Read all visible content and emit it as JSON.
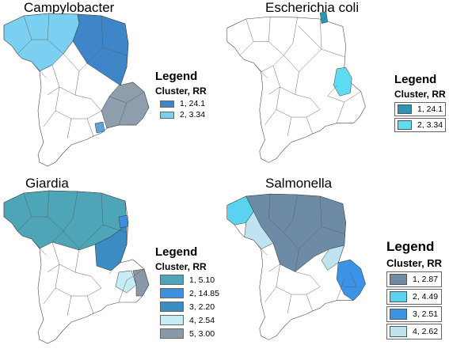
{
  "panels": [
    {
      "id": "campylobacter",
      "title": "Campylobacter",
      "legend": {
        "title": "Legend",
        "subtitle": "Cluster, RR",
        "style": "plain",
        "items": [
          {
            "label": "1, 24.1",
            "color": "#3f86c8"
          },
          {
            "label": "2, 3.34",
            "color": "#7bcff0"
          }
        ]
      },
      "clusters": [
        {
          "region": "north-west",
          "color": "#7bcff0"
        },
        {
          "region": "north-central",
          "color": "#3f86c8"
        },
        {
          "region": "south-east",
          "color": "#8e9eac"
        },
        {
          "region": "south-east-spot",
          "color": "#5fa3d6"
        }
      ]
    },
    {
      "id": "ecoli",
      "title": "Escherichia coli",
      "legend": {
        "title": "Legend",
        "subtitle": "Cluster, RR",
        "style": "boxed",
        "items": [
          {
            "label": "1, 24.1",
            "color": "#2b95b4"
          },
          {
            "label": "2, 3.34",
            "color": "#5fdcf2"
          }
        ]
      },
      "clusters": [
        {
          "region": "north-tip",
          "color": "#2b95b4"
        },
        {
          "region": "east-coast",
          "color": "#5fdcf2"
        }
      ]
    },
    {
      "id": "giardia",
      "title": "Giardia",
      "legend": {
        "title": "Legend",
        "subtitle": "Cluster, RR",
        "style": "plain",
        "items": [
          {
            "label": "1, 5.10",
            "color": "#4ea5b8"
          },
          {
            "label": "2, 14.85",
            "color": "#3f8ee0"
          },
          {
            "label": "3, 2.20",
            "color": "#3a8cc2"
          },
          {
            "label": "4, 2.54",
            "color": "#c6ecf5"
          },
          {
            "label": "5, 3.00",
            "color": "#8a99a8"
          }
        ]
      },
      "clusters": [
        {
          "region": "north-band",
          "color": "#4ea5b8"
        },
        {
          "region": "east-block",
          "color": "#3a8cc2"
        },
        {
          "region": "east-spot",
          "color": "#3f8ee0"
        },
        {
          "region": "south-east-light",
          "color": "#c6ecf5"
        },
        {
          "region": "south-east-grey",
          "color": "#8a99a8"
        }
      ]
    },
    {
      "id": "salmonella",
      "title": "Salmonella",
      "legend": {
        "title": "Legend",
        "subtitle": "Cluster, RR",
        "style": "boxed",
        "items": [
          {
            "label": "1, 2.87",
            "color": "#6d8ba4"
          },
          {
            "label": "2, 4.49",
            "color": "#5ad2f0"
          },
          {
            "label": "3, 2.51",
            "color": "#3b93e6"
          },
          {
            "label": "4, 2.62",
            "color": "#bfe3f0"
          }
        ]
      },
      "clusters": [
        {
          "region": "north-band",
          "color": "#6d8ba4"
        },
        {
          "region": "west-tip",
          "color": "#5ad2f0"
        },
        {
          "region": "west-light",
          "color": "#bfe3f0"
        },
        {
          "region": "east-light",
          "color": "#bfe3f0"
        },
        {
          "region": "south-east",
          "color": "#3b93e6"
        }
      ]
    }
  ]
}
